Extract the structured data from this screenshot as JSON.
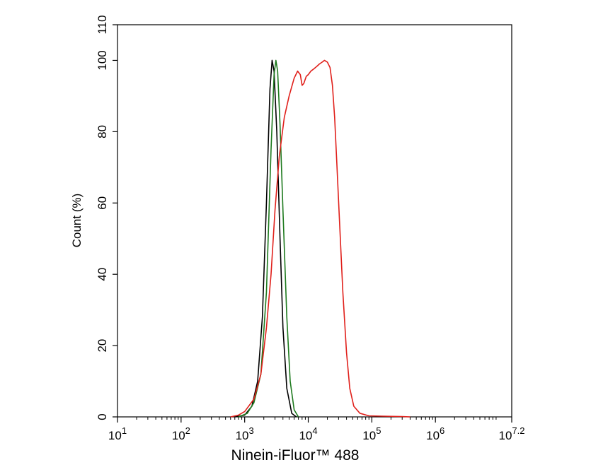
{
  "chart_data": {
    "type": "line",
    "xlabel": "Ninein-iFluor™ 488",
    "ylabel": "Count  (%)",
    "x_scale": "log",
    "xlim": [
      10,
      15848932
    ],
    "ylim": [
      0,
      110
    ],
    "x_ticks": [
      {
        "base": "10",
        "exp": "1",
        "value": 10
      },
      {
        "base": "10",
        "exp": "2",
        "value": 100
      },
      {
        "base": "10",
        "exp": "3",
        "value": 1000
      },
      {
        "base": "10",
        "exp": "4",
        "value": 10000
      },
      {
        "base": "10",
        "exp": "5",
        "value": 100000
      },
      {
        "base": "10",
        "exp": "6",
        "value": 1000000
      },
      {
        "base": "10",
        "exp": "7.2",
        "value": 15848932
      }
    ],
    "y_ticks": [
      "0",
      "20",
      "40",
      "60",
      "80",
      "100",
      "110"
    ],
    "grid": false,
    "legend": "none",
    "series": [
      {
        "color": "#000000",
        "points": [
          [
            700,
            0
          ],
          [
            1000,
            0.5
          ],
          [
            1300,
            3
          ],
          [
            1600,
            10
          ],
          [
            1900,
            28
          ],
          [
            2200,
            60
          ],
          [
            2500,
            92
          ],
          [
            2700,
            100
          ],
          [
            2900,
            97
          ],
          [
            3200,
            80
          ],
          [
            3600,
            50
          ],
          [
            4000,
            25
          ],
          [
            4600,
            8
          ],
          [
            5500,
            1
          ],
          [
            6500,
            0
          ]
        ]
      },
      {
        "color": "#1e7a1e",
        "points": [
          [
            800,
            0
          ],
          [
            1100,
            1
          ],
          [
            1400,
            4
          ],
          [
            1800,
            12
          ],
          [
            2200,
            35
          ],
          [
            2600,
            75
          ],
          [
            2900,
            96
          ],
          [
            3100,
            100
          ],
          [
            3300,
            97
          ],
          [
            3600,
            82
          ],
          [
            4000,
            58
          ],
          [
            4600,
            28
          ],
          [
            5200,
            10
          ],
          [
            6000,
            2
          ],
          [
            7000,
            0
          ]
        ]
      },
      {
        "color": "#e0201b",
        "points": [
          [
            600,
            0
          ],
          [
            800,
            0.5
          ],
          [
            1000,
            1.5
          ],
          [
            1400,
            5
          ],
          [
            1800,
            12
          ],
          [
            2200,
            25
          ],
          [
            2600,
            40
          ],
          [
            3000,
            58
          ],
          [
            3500,
            73
          ],
          [
            4200,
            84
          ],
          [
            5000,
            90
          ],
          [
            6000,
            95
          ],
          [
            6800,
            97
          ],
          [
            7500,
            96
          ],
          [
            8000,
            93
          ],
          [
            8500,
            93.5
          ],
          [
            9300,
            95.5
          ],
          [
            10000,
            96
          ],
          [
            11000,
            97
          ],
          [
            12000,
            97.5
          ],
          [
            13000,
            98
          ],
          [
            14000,
            98.5
          ],
          [
            15000,
            99
          ],
          [
            16500,
            99.5
          ],
          [
            18000,
            100
          ],
          [
            20000,
            99.5
          ],
          [
            22000,
            98
          ],
          [
            24000,
            93
          ],
          [
            26000,
            84
          ],
          [
            28000,
            72
          ],
          [
            31000,
            55
          ],
          [
            35000,
            35
          ],
          [
            40000,
            18
          ],
          [
            45000,
            8
          ],
          [
            52000,
            3
          ],
          [
            65000,
            1
          ],
          [
            90000,
            0.3
          ],
          [
            150000,
            0.2
          ],
          [
            300000,
            0.1
          ],
          [
            400000,
            0
          ]
        ]
      }
    ]
  }
}
